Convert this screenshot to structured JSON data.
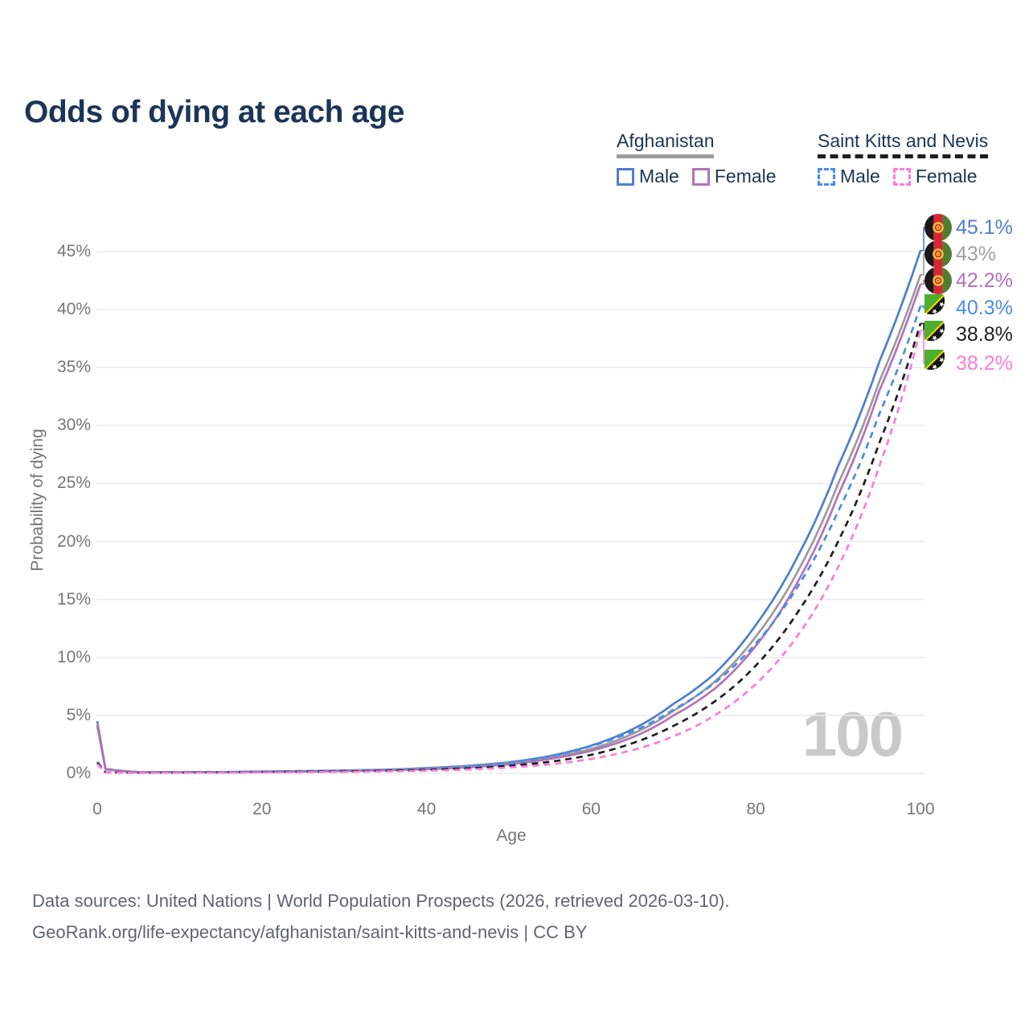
{
  "title": "Odds of dying at each age",
  "watermark": "100",
  "legend": {
    "groups": [
      {
        "country": "Afghanistan",
        "line_style": "solid",
        "underline_color": "#9b9b9b",
        "items": [
          {
            "label": "Male",
            "color": "#4e7fc9",
            "dashed": false
          },
          {
            "label": "Female",
            "color": "#b173b8",
            "dashed": false
          }
        ]
      },
      {
        "country": "Saint Kitts and Nevis",
        "line_style": "dashed",
        "underline_color": "#1f1f1f",
        "items": [
          {
            "label": "Male",
            "color": "#4a8ceb",
            "dashed": true
          },
          {
            "label": "Female",
            "color": "#fc7bdb",
            "dashed": true
          }
        ]
      }
    ]
  },
  "footer": {
    "line1": "Data sources: United Nations | World Population Prospects (2026, retrieved 2026-03-10).",
    "line2": "GeoRank.org/life-expectancy/afghanistan/saint-kitts-and-nevis | CC BY"
  },
  "chart_data": {
    "type": "line",
    "title": "Odds of dying at each age",
    "xlabel": "Age",
    "ylabel": "Probability of dying",
    "xlim": [
      0,
      100
    ],
    "ylim": [
      0,
      47
    ],
    "xticks": [
      0,
      20,
      40,
      60,
      80,
      100
    ],
    "yticks": [
      0,
      5,
      10,
      15,
      20,
      25,
      30,
      35,
      40,
      45
    ],
    "grid": "horizontal-only",
    "legend_position": "top-right",
    "age": [
      0,
      1,
      5,
      10,
      15,
      20,
      25,
      30,
      35,
      40,
      45,
      50,
      55,
      60,
      65,
      70,
      75,
      80,
      85,
      90,
      95,
      100
    ],
    "series": [
      {
        "name": "Afghanistan Male",
        "color": "#4e7fc9",
        "dashed": false,
        "flag": "afghanistan",
        "end_label": "45.1%",
        "end_value": 45.1,
        "values": [
          4.5,
          0.4,
          0.12,
          0.1,
          0.12,
          0.16,
          0.2,
          0.25,
          0.32,
          0.45,
          0.65,
          0.95,
          1.5,
          2.4,
          3.8,
          6.0,
          8.6,
          12.8,
          18.6,
          26.5,
          35.5,
          45.1
        ]
      },
      {
        "name": "Afghanistan Both sexes",
        "color": "#9b9b9b",
        "dashed": false,
        "flag": "afghanistan",
        "end_label": "43%",
        "end_value": 43.0,
        "values": [
          4.3,
          0.38,
          0.11,
          0.09,
          0.11,
          0.14,
          0.18,
          0.22,
          0.29,
          0.4,
          0.58,
          0.85,
          1.35,
          2.1,
          3.4,
          5.4,
          7.9,
          11.8,
          17.3,
          25.0,
          33.8,
          43.0
        ]
      },
      {
        "name": "Afghanistan Female",
        "color": "#b173b8",
        "dashed": false,
        "flag": "afghanistan",
        "end_label": "42.2%",
        "end_value": 42.2,
        "values": [
          4.1,
          0.36,
          0.1,
          0.085,
          0.1,
          0.13,
          0.16,
          0.2,
          0.26,
          0.36,
          0.52,
          0.78,
          1.25,
          1.95,
          3.1,
          5.0,
          7.3,
          11.0,
          16.4,
          24.0,
          33.0,
          42.2
        ]
      },
      {
        "name": "Saint Kitts and Nevis Male",
        "color": "#4a8ceb",
        "dashed": true,
        "flag": "saint-kitts-and-nevis",
        "end_label": "40.3%",
        "end_value": 40.3,
        "values": [
          1.0,
          0.1,
          0.06,
          0.07,
          0.1,
          0.14,
          0.17,
          0.21,
          0.27,
          0.37,
          0.55,
          0.85,
          1.45,
          2.35,
          3.6,
          5.5,
          7.8,
          11.2,
          16.0,
          22.6,
          31.0,
          40.3
        ]
      },
      {
        "name": "Saint Kitts and Nevis Both sexes",
        "color": "#1f1f1f",
        "dashed": true,
        "flag": "saint-kitts-and-nevis",
        "end_label": "38.8%",
        "end_value": 38.8,
        "values": [
          0.9,
          0.09,
          0.05,
          0.06,
          0.08,
          0.11,
          0.14,
          0.17,
          0.22,
          0.3,
          0.43,
          0.65,
          1.0,
          1.6,
          2.6,
          4.1,
          6.2,
          9.3,
          13.8,
          20.0,
          28.5,
          38.8
        ]
      },
      {
        "name": "Saint Kitts and Nevis Female",
        "color": "#fc7bdb",
        "dashed": true,
        "flag": "saint-kitts-and-nevis",
        "end_label": "38.2%",
        "end_value": 38.2,
        "values": [
          0.8,
          0.08,
          0.04,
          0.05,
          0.06,
          0.08,
          0.1,
          0.13,
          0.17,
          0.23,
          0.33,
          0.5,
          0.78,
          1.25,
          2.0,
          3.2,
          5.0,
          7.7,
          11.8,
          17.8,
          26.5,
          38.2
        ]
      }
    ]
  }
}
